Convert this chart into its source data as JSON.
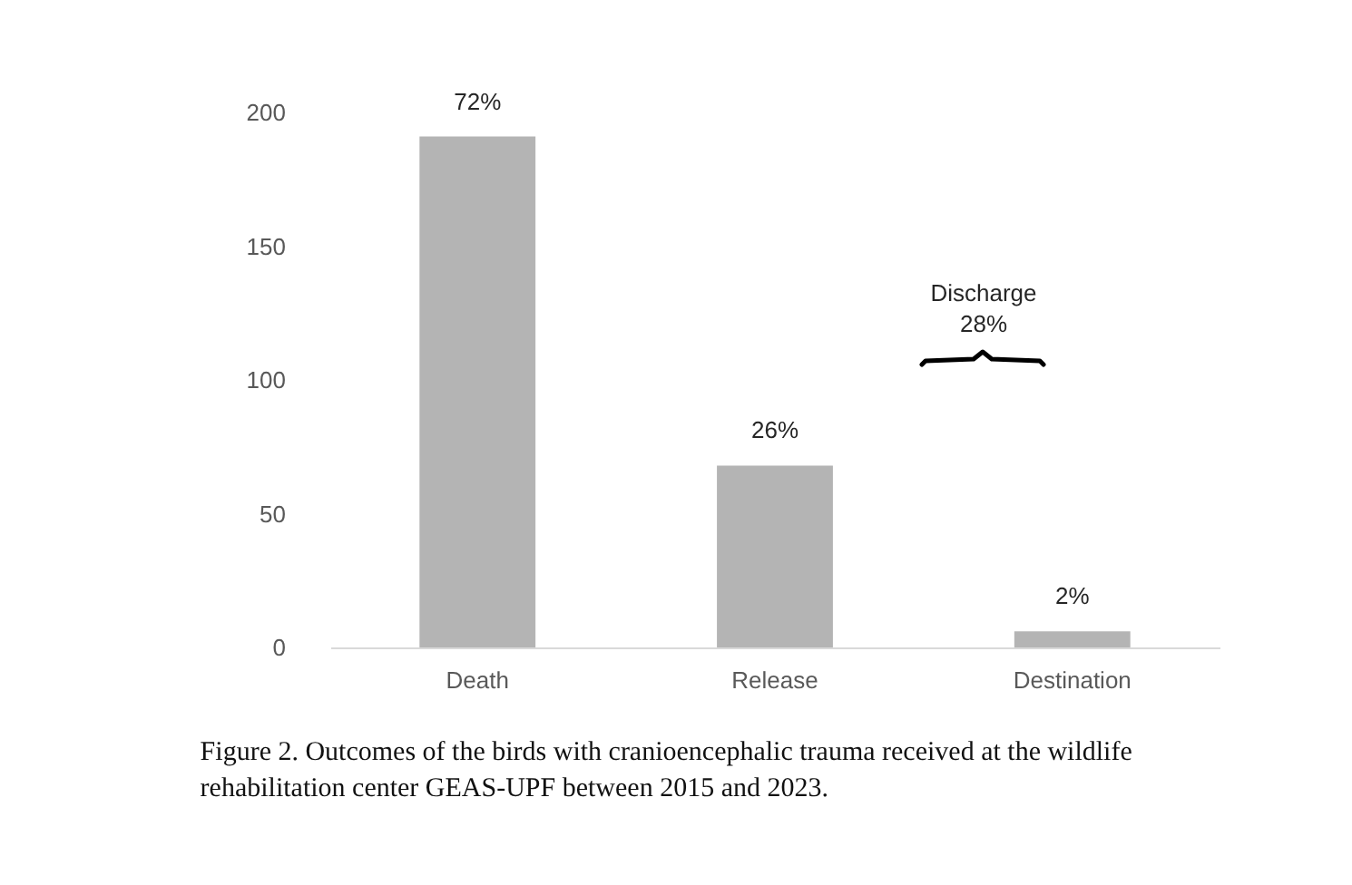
{
  "chart_data": {
    "type": "bar",
    "categories": [
      "Death",
      "Release",
      "Destination"
    ],
    "values": [
      191,
      68,
      6
    ],
    "color": "#b4b4b4",
    "ylim": [
      0,
      200
    ],
    "yticks": [
      0,
      50,
      100,
      150,
      200
    ],
    "grid": false,
    "annotations": [
      {
        "text": "72%",
        "x": "Death",
        "y": 191
      },
      {
        "text": "26%",
        "x": "Release",
        "y": 68
      },
      {
        "text": "2%",
        "x": "Destination",
        "y": 6
      },
      "Discharge\n28%",
      "Figure 2. Outcomes of the birds with cranioencephalic trauma received at the wildlife rehabilitation center GEAS-UPF between 2015 and 2023."
    ]
  }
}
